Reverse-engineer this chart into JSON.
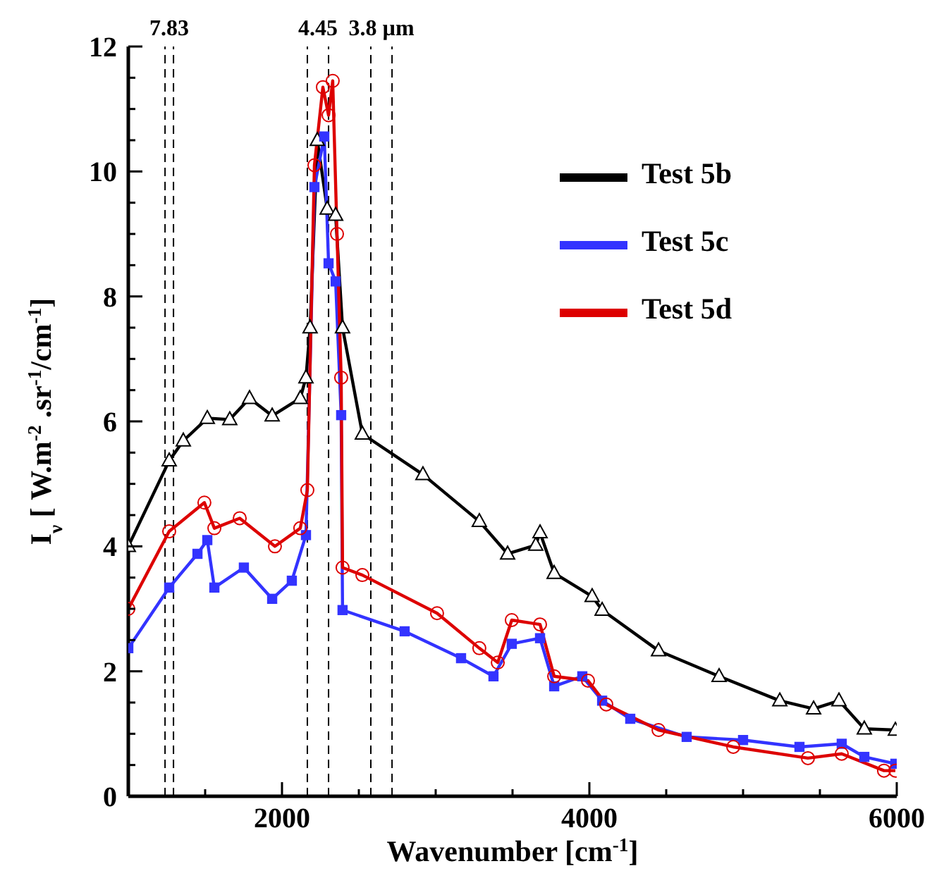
{
  "chart_data": {
    "type": "line",
    "xlabel": "Wavenumber [cm$^{-1}$]",
    "ylabel": "I$_{ν}$ [ W.m$^{-2}$ .sr$^{-1}$/cm$^{-1}$]",
    "xlim": [
      1000,
      6000
    ],
    "ylim": [
      0,
      12
    ],
    "xticks": [
      {
        "value": 1000,
        "label": null
      },
      {
        "value": 1500,
        "label": null
      },
      2000,
      {
        "value": 2500,
        "label": null
      },
      {
        "value": 3000,
        "label": null
      },
      {
        "value": 3500,
        "label": null
      },
      4000,
      {
        "value": 4500,
        "label": null
      },
      {
        "value": 5000,
        "label": null
      },
      {
        "value": 5500,
        "label": null
      },
      6000
    ],
    "yticks": [
      0,
      {
        "value": 0.5,
        "label": null
      },
      {
        "value": 1,
        "label": null
      },
      {
        "value": 1.5,
        "label": null
      },
      2,
      {
        "value": 2.5,
        "label": null
      },
      {
        "value": 3,
        "label": null
      },
      {
        "value": 3.5,
        "label": null
      },
      4,
      {
        "value": 4.5,
        "label": null
      },
      {
        "value": 5,
        "label": null
      },
      {
        "value": 5.5,
        "label": null
      },
      6,
      {
        "value": 6.5,
        "label": null
      },
      {
        "value": 7,
        "label": null
      },
      {
        "value": 7.5,
        "label": null
      },
      8,
      {
        "value": 8.5,
        "label": null
      },
      {
        "value": 9,
        "label": null
      },
      {
        "value": 9.5,
        "label": null
      },
      10,
      {
        "value": 10.5,
        "label": null
      },
      {
        "value": 11,
        "label": null
      },
      {
        "value": 11.5,
        "label": null
      },
      12
    ],
    "grid": false,
    "legend": "top right",
    "line_style": "solid",
    "ref_lines": [
      {
        "axis": "x",
        "value": 1239,
        "label": null,
        "line_style": "dashed",
        "color": "#000000"
      },
      {
        "axis": "x",
        "value": 1294,
        "label": null,
        "line_style": "dashed",
        "color": "#000000"
      },
      {
        "axis": "x",
        "value": 2165,
        "label": null,
        "line_style": "dashed",
        "color": "#000000"
      },
      {
        "axis": "x",
        "value": 2303,
        "label": null,
        "line_style": "dashed",
        "color": "#000000"
      },
      {
        "axis": "x",
        "value": 2578,
        "label": null,
        "line_style": "dashed",
        "color": "#000000"
      },
      {
        "axis": "x",
        "value": 2716,
        "label": null,
        "line_style": "dashed",
        "color": "#000000"
      }
    ],
    "annotations": [
      "7.83",
      "4.45",
      "3.8 µm"
    ],
    "series": [
      {
        "name": "Test 5b",
        "color": "#000000",
        "marker": "triangle",
        "x": [
          1000,
          1266,
          1358,
          1514,
          1660,
          1789,
          1936,
          2119,
          2156,
          2183,
          2230,
          2294,
          2349,
          2394,
          2523,
          2917,
          3284,
          3468,
          3651,
          3679,
          3771,
          4018,
          4083,
          4450,
          4844,
          5239,
          5459,
          5624,
          5789,
          5991
        ],
        "values": [
          4.0,
          5.37,
          5.69,
          6.05,
          6.03,
          6.37,
          6.09,
          6.37,
          6.7,
          7.5,
          10.5,
          9.4,
          9.3,
          7.5,
          5.8,
          5.15,
          4.4,
          3.88,
          4.02,
          4.22,
          3.57,
          3.2,
          2.98,
          2.33,
          1.92,
          1.53,
          1.4,
          1.53,
          1.08,
          1.06
        ]
      },
      {
        "name": "Test 5c",
        "color": "#3333ff",
        "marker": "square",
        "x": [
          1000,
          1266,
          1450,
          1514,
          1560,
          1752,
          1936,
          2064,
          2156,
          2211,
          2275,
          2303,
          2349,
          2385,
          2394,
          2798,
          3165,
          3376,
          3495,
          3679,
          3771,
          3954,
          4083,
          4266,
          4633,
          5000,
          5367,
          5642,
          5789,
          5991
        ],
        "values": [
          2.37,
          3.34,
          3.88,
          4.1,
          3.34,
          3.66,
          3.16,
          3.45,
          4.18,
          9.75,
          10.56,
          8.53,
          8.24,
          6.1,
          2.98,
          2.64,
          2.21,
          1.92,
          2.44,
          2.53,
          1.76,
          1.92,
          1.53,
          1.24,
          0.95,
          0.9,
          0.79,
          0.84,
          0.63,
          0.52
        ]
      },
      {
        "name": "Test 5d",
        "color": "#dd0000",
        "marker": "circle",
        "x": [
          1000,
          1266,
          1495,
          1560,
          1725,
          1954,
          2119,
          2165,
          2211,
          2266,
          2303,
          2330,
          2358,
          2385,
          2394,
          2523,
          3009,
          3284,
          3404,
          3495,
          3679,
          3771,
          3991,
          4110,
          4450,
          4936,
          5422,
          5642,
          5917,
          5991
        ],
        "values": [
          3.0,
          4.24,
          4.7,
          4.29,
          4.45,
          4.0,
          4.29,
          4.9,
          10.1,
          11.35,
          10.9,
          11.45,
          9.0,
          6.7,
          3.66,
          3.54,
          2.93,
          2.37,
          2.14,
          2.82,
          2.75,
          1.92,
          1.85,
          1.47,
          1.06,
          0.79,
          0.61,
          0.68,
          0.41,
          0.41
        ]
      }
    ]
  }
}
